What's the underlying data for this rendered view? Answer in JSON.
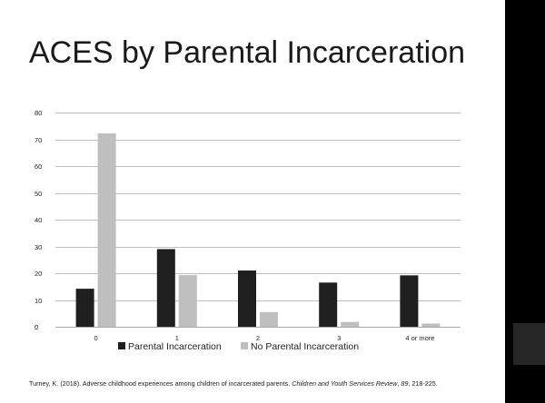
{
  "slide": {
    "title": "ACES by Parental Incarceration",
    "citation": {
      "authors_year": "Turney, K. (2018). Adverse childhood experiences among children of incarcerated parents. ",
      "journal_volume_prefix": "Children and Youth Services Review",
      "sep1": ", ",
      "volume": "89",
      "pages": ", 218-225."
    }
  },
  "colors": {
    "background": "#000000",
    "slide": "#ffffff",
    "side_box": "#262626",
    "gridline": "#bfbfbf",
    "axis": "#a6a6a6"
  },
  "chart_data": {
    "type": "bar",
    "title": "",
    "xlabel": "",
    "ylabel": "",
    "categories": [
      "0",
      "1",
      "2",
      "3",
      "4 or more"
    ],
    "ylim": [
      0,
      80
    ],
    "yticks": [
      0,
      10,
      20,
      30,
      40,
      50,
      60,
      70,
      80
    ],
    "grid": true,
    "legend_position": "bottom",
    "series": [
      {
        "name": "Parental Incarceration",
        "color": "#1f1f1f",
        "values": [
          14.2,
          29,
          21,
          16.5,
          19.2
        ]
      },
      {
        "name": "No Parental Incarceration",
        "color": "#bfbfbf",
        "values": [
          72.2,
          19.3,
          5.5,
          1.8,
          1.2
        ]
      }
    ]
  }
}
